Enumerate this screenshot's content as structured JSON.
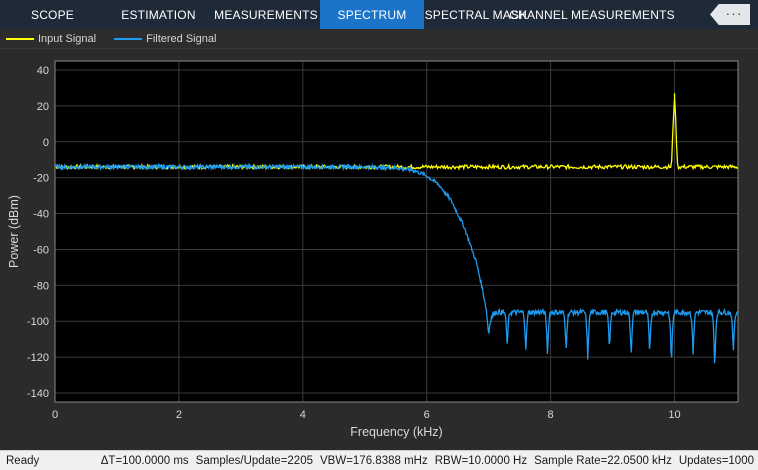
{
  "tabs": [
    {
      "label": "SCOPE",
      "active": false
    },
    {
      "label": "ESTIMATION",
      "active": false
    },
    {
      "label": "MEASUREMENTS",
      "active": false
    },
    {
      "label": "SPECTRUM",
      "active": true
    },
    {
      "label": "SPECTRAL MASK",
      "active": false
    },
    {
      "label": "CHANNEL MEASUREMENTS",
      "active": false
    }
  ],
  "collapse_icon": "more-dots",
  "legend": [
    {
      "name": "Input Signal",
      "color": "#ffff00"
    },
    {
      "name": "Filtered Signal",
      "color": "#1d9bf0"
    }
  ],
  "chart_data": {
    "type": "line",
    "xlabel": "Frequency (kHz)",
    "ylabel": "Power (dBm)",
    "xlim": [
      0,
      11.025
    ],
    "ylim": [
      -145,
      45
    ],
    "xticks": [
      0,
      2,
      4,
      6,
      8,
      10
    ],
    "yticks": [
      -140,
      -120,
      -100,
      -80,
      -60,
      -40,
      -20,
      0,
      20,
      40
    ],
    "grid": true,
    "background": "#000000",
    "series": [
      {
        "name": "Input Signal",
        "color": "#ffff00",
        "x": [
          0,
          1,
          2,
          3,
          4,
          5,
          6,
          7,
          8,
          9,
          9.95,
          10.0,
          10.05,
          11.025
        ],
        "y": [
          -14,
          -14,
          -14,
          -14,
          -14,
          -14,
          -14,
          -14,
          -14,
          -14,
          -14,
          27,
          -14,
          -14
        ]
      },
      {
        "name": "Filtered Signal",
        "color": "#1d9bf0",
        "x": [
          0,
          1,
          2,
          3,
          4,
          5,
          5.5,
          5.8,
          6.0,
          6.2,
          6.4,
          6.6,
          6.8,
          6.9,
          7.0,
          7.1,
          7.5,
          8.0,
          8.5,
          9.0,
          9.5,
          10.0,
          10.5,
          11.025
        ],
        "y": [
          -14,
          -14,
          -14,
          -14,
          -14,
          -14,
          -14.5,
          -16,
          -19,
          -24,
          -33,
          -47,
          -67,
          -82,
          -100,
          -95,
          -95,
          -95,
          -95,
          -95,
          -95,
          -95,
          -95,
          -95
        ]
      }
    ]
  },
  "status": {
    "ready": "Ready",
    "delta_t": "ΔT=100.0000 ms",
    "samples": "Samples/Update=2205",
    "vbw": "VBW=176.8388 mHz",
    "rbw": "RBW=10.0000 Hz",
    "sample_rate": "Sample Rate=22.0500 kHz",
    "updates": "Updates=1000"
  }
}
